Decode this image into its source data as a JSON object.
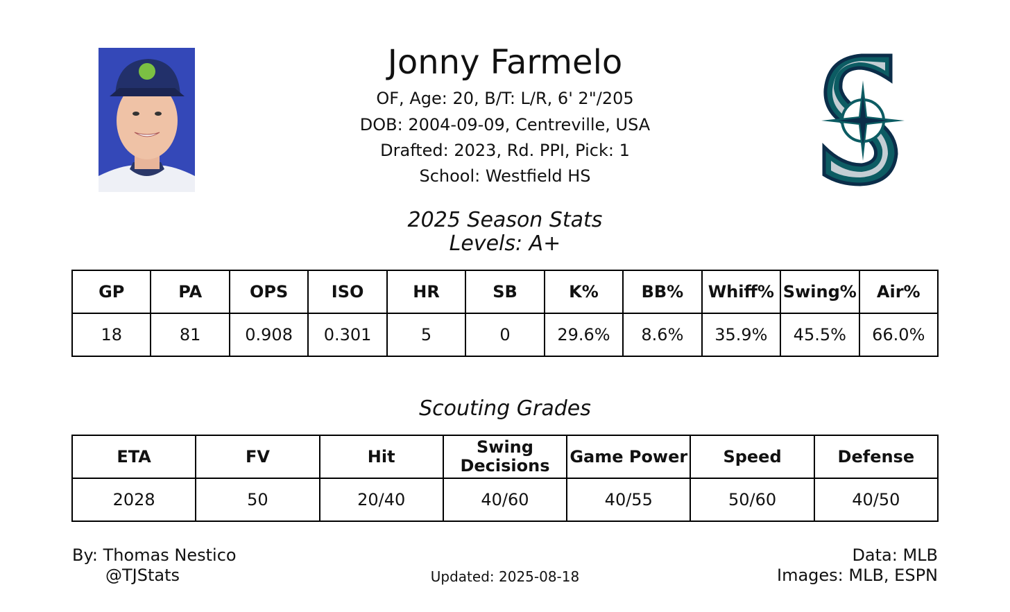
{
  "header": {
    "name": "Jonny Farmelo",
    "lines": [
      "OF, Age: 20, B/T: L/R, 6' 2\"/205",
      "DOB: 2004-09-09, Centreville, USA",
      "Drafted: 2023, Rd. PPI, Pick: 1",
      "School: Westfield HS"
    ]
  },
  "stats": {
    "title": "2025 Season Stats",
    "subtitle": "Levels: A+",
    "table": {
      "columns": [
        "GP",
        "PA",
        "OPS",
        "ISO",
        "HR",
        "SB",
        "K%",
        "BB%",
        "Whiff%",
        "Swing%",
        "Air%"
      ],
      "rows": [
        [
          "18",
          "81",
          "0.908",
          "0.301",
          "5",
          "0",
          "29.6%",
          "8.6%",
          "35.9%",
          "45.5%",
          "66.0%"
        ]
      ]
    }
  },
  "grades": {
    "title": "Scouting Grades",
    "table": {
      "columns": [
        "ETA",
        "FV",
        "Hit",
        "Swing Decisions",
        "Game Power",
        "Speed",
        "Defense"
      ],
      "rows": [
        [
          "2028",
          "50",
          "20/40",
          "40/60",
          "40/55",
          "50/60",
          "40/50"
        ]
      ]
    }
  },
  "footer": {
    "author": "By: Thomas Nestico",
    "handle": "@TJStats",
    "updated": "Updated: 2025-08-18",
    "data": "Data: MLB",
    "images": "Images: MLB, ESPN"
  }
}
